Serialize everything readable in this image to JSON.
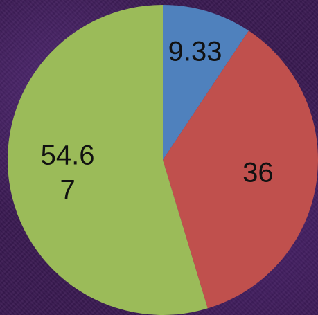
{
  "chart_data": {
    "type": "pie",
    "values": [
      9.33,
      36,
      54.67
    ],
    "labels": [
      {
        "lines": [
          "9.33"
        ]
      },
      {
        "lines": [
          "36"
        ]
      },
      {
        "lines": [
          "54.6",
          "7"
        ]
      }
    ],
    "colors": [
      "#4f81bd",
      "#c0504d",
      "#9bbb59"
    ],
    "start_angle_deg": 0,
    "direction": "clockwise",
    "background": "#3a1a52"
  }
}
